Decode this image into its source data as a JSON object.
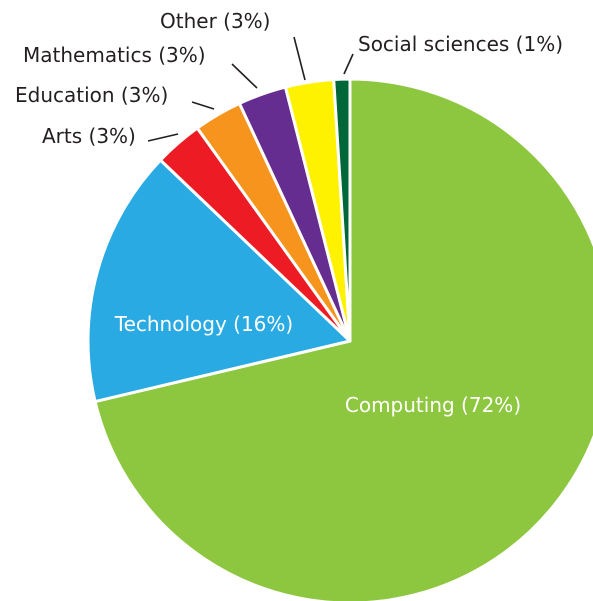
{
  "chart_data": {
    "type": "pie",
    "title": "",
    "series": [
      {
        "values": [
          72,
          16,
          3,
          3,
          3,
          3,
          1
        ],
        "categories": [
          "Computing",
          "Technology",
          "Arts",
          "Education",
          "Mathematics",
          "Other",
          "Social sciences"
        ]
      }
    ],
    "slices": [
      {
        "label": "Computing",
        "value": 72,
        "text": "Computing (72%)",
        "color": "#8dc63f",
        "label_placement": "inside",
        "label_color": "#ffffff"
      },
      {
        "label": "Technology",
        "value": 16,
        "text": "Technology (16%)",
        "color": "#29aae2",
        "label_placement": "inside",
        "label_color": "#ffffff"
      },
      {
        "label": "Arts",
        "value": 3,
        "text": "Arts (3%)",
        "color": "#ed1c24",
        "label_placement": "outside",
        "label_color": "#231f20"
      },
      {
        "label": "Education",
        "value": 3,
        "text": "Education (3%)",
        "color": "#f7941d",
        "label_placement": "outside",
        "label_color": "#231f20"
      },
      {
        "label": "Mathematics",
        "value": 3,
        "text": "Mathematics (3%)",
        "color": "#662d91",
        "label_placement": "outside",
        "label_color": "#231f20"
      },
      {
        "label": "Other",
        "value": 3,
        "text": "Other (3%)",
        "color": "#fff200",
        "label_placement": "outside",
        "label_color": "#231f20"
      },
      {
        "label": "Social sciences",
        "value": 1,
        "text": "Social sciences (1%)",
        "color": "#006838",
        "label_placement": "outside",
        "label_color": "#231f20"
      }
    ],
    "start_angle": "12 o'clock",
    "direction": "clockwise",
    "legend": "none"
  }
}
